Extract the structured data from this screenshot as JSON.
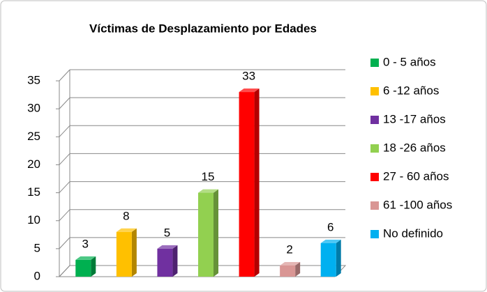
{
  "chart_data": {
    "type": "bar3d",
    "title": "Víctimas de Desplazamiento por Edades",
    "categories": [
      null
    ],
    "series": [
      {
        "name": "0 - 5 años",
        "color": "#00b050",
        "values": [
          3
        ]
      },
      {
        "name": "6 -12 años",
        "color": "#ffc000",
        "values": [
          8
        ]
      },
      {
        "name": "13 -17 años",
        "color": "#7030a0",
        "values": [
          5
        ]
      },
      {
        "name": "18 -26 años",
        "color": "#92d050",
        "values": [
          15
        ]
      },
      {
        "name": "27 - 60 años",
        "color": "#ff0000",
        "values": [
          33
        ]
      },
      {
        "name": "61 -100 años",
        "color": "#d99694",
        "values": [
          2
        ]
      },
      {
        "name": "No definido",
        "color": "#00b0f0",
        "values": [
          6
        ]
      }
    ],
    "ylim": [
      0,
      35
    ],
    "yticks": [
      0,
      5,
      10,
      15,
      20,
      25,
      30,
      35
    ],
    "grid": true,
    "legend": "right"
  }
}
